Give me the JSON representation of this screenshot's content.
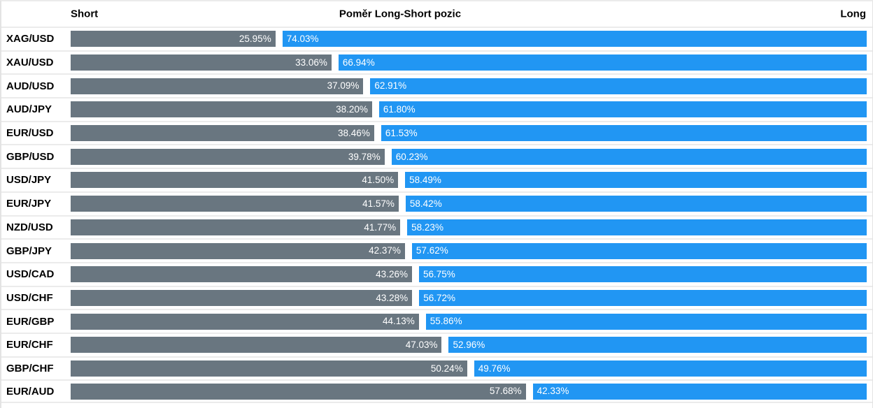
{
  "chart_data": {
    "type": "bar",
    "orientation": "horizontal",
    "stacked": true,
    "title": "Poměr Long-Short pozic",
    "legend": {
      "left": "Short",
      "right": "Long",
      "position": "top"
    },
    "value_suffix": "%",
    "value_decimals": 2,
    "xlim": [
      0,
      100
    ],
    "grid": false,
    "colors": {
      "short_bar": "#697680",
      "long_bar": "#2196F3",
      "value_text": "#FFFFFF",
      "separator": "#EBEBEB"
    },
    "categories": [
      "XAG/USD",
      "XAU/USD",
      "AUD/USD",
      "AUD/JPY",
      "EUR/USD",
      "GBP/USD",
      "USD/JPY",
      "EUR/JPY",
      "NZD/USD",
      "GBP/JPY",
      "USD/CAD",
      "USD/CHF",
      "EUR/GBP",
      "EUR/CHF",
      "GBP/CHF",
      "EUR/AUD"
    ],
    "series": [
      {
        "name": "Short",
        "color": "#697680",
        "values": [
          25.95,
          33.06,
          37.09,
          38.2,
          38.46,
          39.78,
          41.5,
          41.57,
          41.77,
          42.37,
          43.26,
          43.28,
          44.13,
          47.03,
          50.24,
          57.68
        ]
      },
      {
        "name": "Long",
        "color": "#2196F3",
        "values": [
          74.03,
          66.94,
          62.91,
          61.8,
          61.53,
          60.23,
          58.49,
          58.42,
          58.23,
          57.62,
          56.75,
          56.72,
          55.86,
          52.96,
          49.76,
          42.33
        ]
      }
    ]
  }
}
